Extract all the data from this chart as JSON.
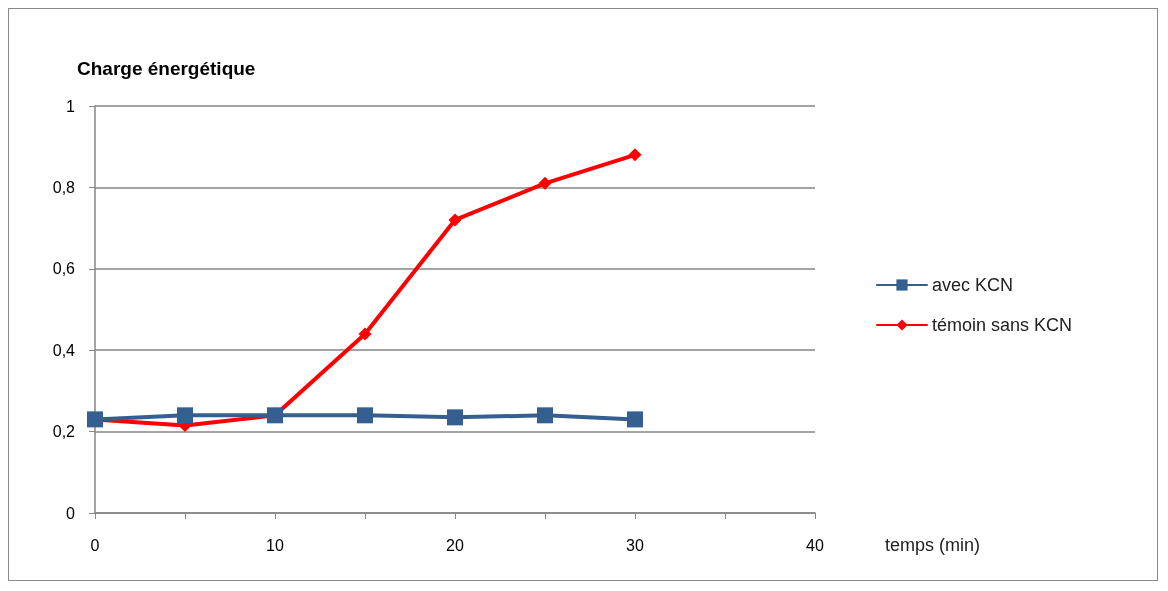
{
  "chart_data": {
    "type": "line",
    "title": "Charge énergétique",
    "xlabel": "temps (min)",
    "x": [
      0,
      5,
      10,
      15,
      20,
      25,
      30
    ],
    "series": [
      {
        "name": "avec KCN",
        "color": "#355f91",
        "marker": "square",
        "values": [
          0.23,
          0.24,
          0.24,
          0.24,
          0.235,
          0.24,
          0.23
        ]
      },
      {
        "name": "témoin sans KCN",
        "color": "#ff0000",
        "marker": "diamond",
        "values": [
          0.23,
          0.215,
          0.24,
          0.44,
          0.72,
          0.81,
          0.88
        ]
      }
    ],
    "xlim": [
      0,
      40
    ],
    "xticks": [
      0,
      {
        "value": 5,
        "label": null
      },
      10,
      {
        "value": 15,
        "label": null
      },
      20,
      {
        "value": 25,
        "label": null
      },
      30,
      {
        "value": 35,
        "label": null
      },
      40
    ],
    "ylim": [
      0,
      1
    ],
    "yticks": [
      0,
      {
        "value": 0.2,
        "label": "0,2"
      },
      {
        "value": 0.4,
        "label": "0,4"
      },
      {
        "value": 0.6,
        "label": "0,6"
      },
      {
        "value": 0.8,
        "label": "0,8"
      },
      1
    ],
    "grid": "y",
    "legend": "right"
  }
}
